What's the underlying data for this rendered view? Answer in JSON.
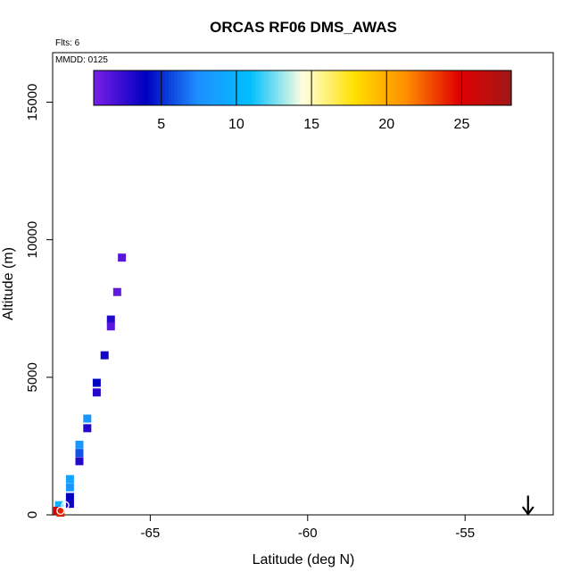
{
  "chart_data": {
    "type": "scatter",
    "title": "ORCAS RF06 DMS_AWAS",
    "xlabel": "Latitude (deg N)",
    "ylabel": "Altitude (m)",
    "xlim": [
      -68.1,
      -52.2
    ],
    "ylim": [
      0,
      16800
    ],
    "x_ticks": [
      -65,
      -60,
      -55
    ],
    "y_ticks": [
      0,
      5000,
      10000,
      15000
    ],
    "annotations": {
      "flights": "Flts: 6",
      "date": "MMDD: 0125"
    },
    "colorbar": {
      "min": 0.5,
      "max": 28.3,
      "ticks": [
        5,
        10,
        15,
        20,
        25
      ],
      "colors": [
        "#7b1fe6",
        "#0000c0",
        "#1e90ff",
        "#00bfff",
        "#ffffe0",
        "#ffe000",
        "#ff8c00",
        "#e00000",
        "#a01818"
      ]
    },
    "points": [
      {
        "lat": -65.9,
        "alt": 9350,
        "value": 1.5
      },
      {
        "lat": -66.05,
        "alt": 8100,
        "value": 1.2
      },
      {
        "lat": -66.25,
        "alt": 7100,
        "value": 3.0
      },
      {
        "lat": -66.25,
        "alt": 6850,
        "value": 1.5
      },
      {
        "lat": -66.45,
        "alt": 5800,
        "value": 3.5
      },
      {
        "lat": -66.7,
        "alt": 4800,
        "value": 4.0
      },
      {
        "lat": -66.7,
        "alt": 4450,
        "value": 3.0
      },
      {
        "lat": -67.0,
        "alt": 3500,
        "value": 8.0
      },
      {
        "lat": -67.0,
        "alt": 3150,
        "value": 3.0
      },
      {
        "lat": -67.25,
        "alt": 2550,
        "value": 8.0
      },
      {
        "lat": -67.25,
        "alt": 2250,
        "value": 6.0
      },
      {
        "lat": -67.25,
        "alt": 1950,
        "value": 3.0
      },
      {
        "lat": -67.55,
        "alt": 1300,
        "value": 9.0
      },
      {
        "lat": -67.55,
        "alt": 1000,
        "value": 8.0
      },
      {
        "lat": -67.55,
        "alt": 650,
        "value": 4.0
      },
      {
        "lat": -67.55,
        "alt": 400,
        "value": 3.5
      },
      {
        "lat": -67.9,
        "alt": 350,
        "value": 10.0
      },
      {
        "lat": -67.95,
        "alt": 150,
        "value": 26.0
      },
      {
        "lat": -67.85,
        "alt": 80,
        "value": 24.0
      }
    ],
    "circles": [
      {
        "lat": -67.7,
        "alt": 350,
        "value": 11.0
      },
      {
        "lat": -67.85,
        "alt": 150,
        "value": 26.0
      }
    ],
    "arrow": {
      "lat": -53.0,
      "alt_top": 700,
      "alt_bottom": 0
    }
  }
}
